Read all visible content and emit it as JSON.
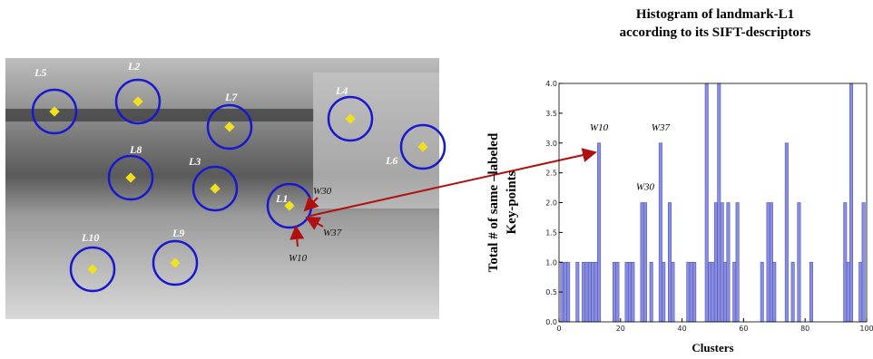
{
  "image": {
    "landmarks": [
      "L5",
      "L2",
      "L7",
      "L4",
      "L8",
      "L3",
      "L6",
      "L1",
      "L10",
      "L9"
    ],
    "words": [
      "W30",
      "W37",
      "W10"
    ]
  },
  "chart_data": {
    "type": "bar",
    "title": [
      "Histogram of landmark-L1",
      "according to its SIFT-descriptors"
    ],
    "y_label": [
      "Total # of  same –labeled",
      "Key-points"
    ],
    "x_label": "Clusters",
    "x": [
      1,
      2,
      3,
      6,
      8,
      9,
      10,
      11,
      12,
      13,
      18,
      19,
      22,
      23,
      24,
      27,
      28,
      30,
      33,
      34,
      36,
      37,
      42,
      43,
      44,
      48,
      49,
      50,
      51,
      52,
      53,
      54,
      55,
      57,
      58,
      66,
      68,
      69,
      70,
      74,
      76,
      78,
      82,
      93,
      94,
      95,
      98,
      99
    ],
    "values": [
      1,
      1,
      1,
      1,
      1,
      1,
      1,
      1,
      1,
      3,
      1,
      1,
      1,
      1,
      1,
      2,
      2,
      1,
      3,
      1,
      2,
      1,
      1,
      1,
      1,
      4,
      1,
      1,
      2,
      4,
      2,
      1,
      2,
      1,
      2,
      1,
      2,
      2,
      1,
      3,
      1,
      2,
      1,
      2,
      1,
      4,
      1,
      2
    ],
    "color": "#8a8ee0",
    "annotations": [
      {
        "text": "W10",
        "x": 13,
        "y": 3
      },
      {
        "text": "W37",
        "x": 33,
        "y": 3
      },
      {
        "text": "W30",
        "x": 28,
        "y": 2
      }
    ],
    "xlim": [
      0,
      100
    ],
    "xticks": [
      0,
      20,
      40,
      60,
      80,
      100
    ],
    "ylim": [
      0,
      4
    ],
    "yticks": [
      {
        "value": 0,
        "label": "0.0"
      },
      {
        "value": 0.5,
        "label": "0.5"
      },
      {
        "value": 1,
        "label": "1.0"
      },
      {
        "value": 1.5,
        "label": "1.5"
      },
      {
        "value": 2,
        "label": "2.0"
      },
      {
        "value": 2.5,
        "label": "2.5"
      },
      {
        "value": 3,
        "label": "3.0"
      },
      {
        "value": 3.5,
        "label": "3.5"
      },
      {
        "value": 4,
        "label": "4.0"
      }
    ]
  }
}
